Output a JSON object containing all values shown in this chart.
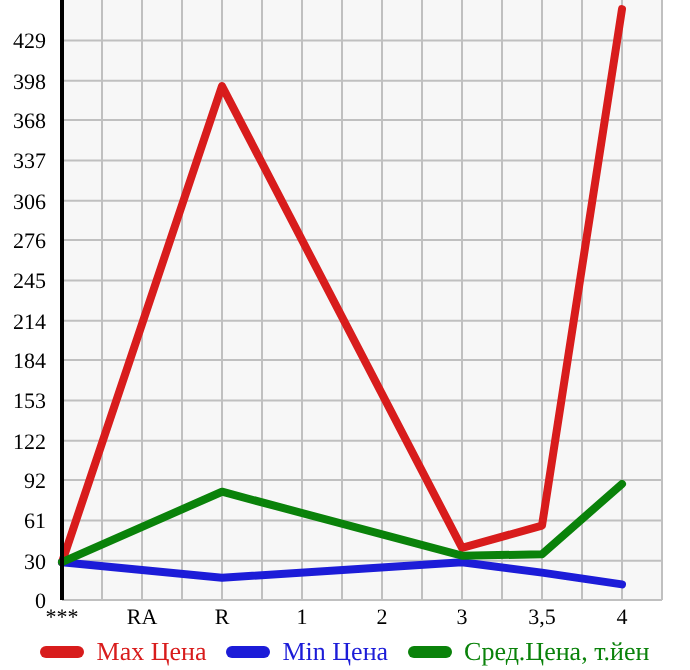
{
  "chart_data": {
    "type": "line",
    "categories": [
      "***",
      "RA",
      "R",
      "1",
      "2",
      "3",
      "3,5",
      "4"
    ],
    "series": [
      {
        "name": "Max Цена",
        "color": "#d81c1c",
        "values": [
          29,
          null,
          394,
          null,
          null,
          40,
          57,
          453
        ]
      },
      {
        "name": "Min Цена",
        "color": "#1c1cd8",
        "values": [
          29,
          null,
          17,
          null,
          null,
          29,
          21,
          12
        ]
      },
      {
        "name": "Сред.Цена, т.йен",
        "color": "#0a820a",
        "values": [
          29,
          null,
          83,
          null,
          null,
          34,
          35,
          89
        ]
      }
    ],
    "ylim": [
      0,
      460
    ],
    "yticks": [
      0,
      30,
      61,
      92,
      122,
      153,
      184,
      214,
      245,
      276,
      306,
      337,
      368,
      398,
      429
    ],
    "grid": true,
    "legend": "bottom",
    "marker": "none",
    "line_style": "solid"
  }
}
